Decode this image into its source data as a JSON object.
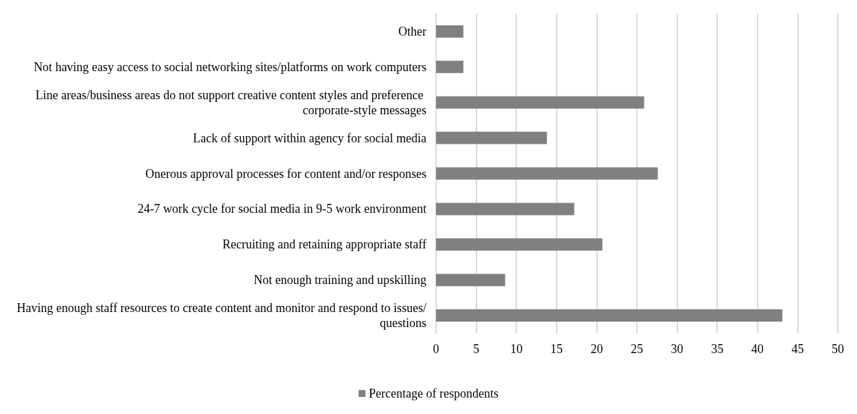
{
  "chart_data": {
    "type": "bar",
    "orientation": "horizontal",
    "categories": [
      "Other",
      "Not having easy access to social networking sites/platforms on work computers",
      "Line areas/business areas do not support creative content styles and preference corporate-style messages",
      "Lack of support within agency for social media",
      "Onerous approval processes for content and/or responses",
      "24-7 work cycle for social media in 9-5 work environment",
      "Recruiting and retaining appropriate staff",
      "Not enough training and upskilling",
      "Having enough staff resources to create content and monitor and respond to issues/questions"
    ],
    "series": [
      {
        "name": "Percentage of respondents",
        "color": "#808080",
        "values": [
          3.4,
          3.4,
          25.9,
          13.8,
          27.6,
          17.2,
          20.7,
          8.6,
          43.1
        ]
      }
    ],
    "xlim": [
      0,
      50
    ],
    "xticks": [
      0,
      5,
      10,
      15,
      20,
      25,
      30,
      35,
      40,
      45,
      50
    ],
    "grid": "x",
    "legend": "bottom"
  }
}
